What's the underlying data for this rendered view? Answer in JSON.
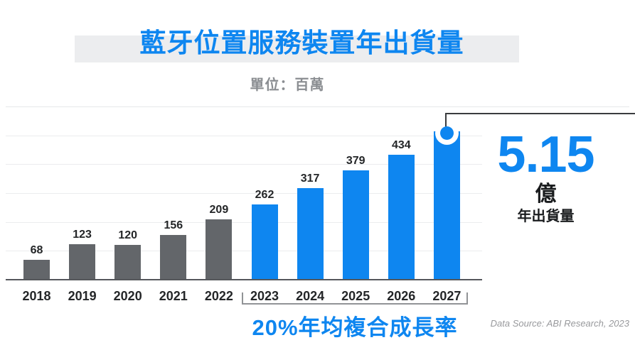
{
  "header": {
    "title": "藍牙位置服務裝置年出貨量",
    "subtitle": "單位：百萬"
  },
  "chart_data": {
    "type": "bar",
    "title": "藍牙位置服務裝置年出貨量",
    "unit_note": "單位：百萬",
    "categories": [
      "2018",
      "2019",
      "2020",
      "2021",
      "2022",
      "2023",
      "2024",
      "2025",
      "2026",
      "2027"
    ],
    "values": [
      68,
      123,
      120,
      156,
      209,
      262,
      317,
      379,
      434,
      515
    ],
    "value_labels": [
      "68",
      "123",
      "120",
      "156",
      "209",
      "262",
      "317",
      "379",
      "434",
      ""
    ],
    "forecast_start_index": 5,
    "callout_bar_index": 9,
    "ylim": [
      0,
      600
    ],
    "gridline_values": [
      100,
      200,
      300,
      400,
      500,
      600
    ],
    "grid": true,
    "legend": false,
    "bar_color_historical": "#63666A",
    "bar_color_forecast": "#0E86F0"
  },
  "callout": {
    "value": "5.15",
    "unit": "億",
    "label": "年出貨量"
  },
  "annotations": {
    "cagr": "20%年均複合成長率",
    "data_source": "Data Source: ABI Research, 2023"
  },
  "colors": {
    "accent_blue": "#0E86F0",
    "bar_gray": "#63666A",
    "title_highlight_band": "#ECEDEF",
    "gridline": "#EBECEE",
    "axis": "#55575B",
    "text_dark": "#242628",
    "text_gray": "#8A8D91",
    "connector": "#3A3C3F",
    "bracket": "#919396",
    "source_text": "#98999C"
  }
}
